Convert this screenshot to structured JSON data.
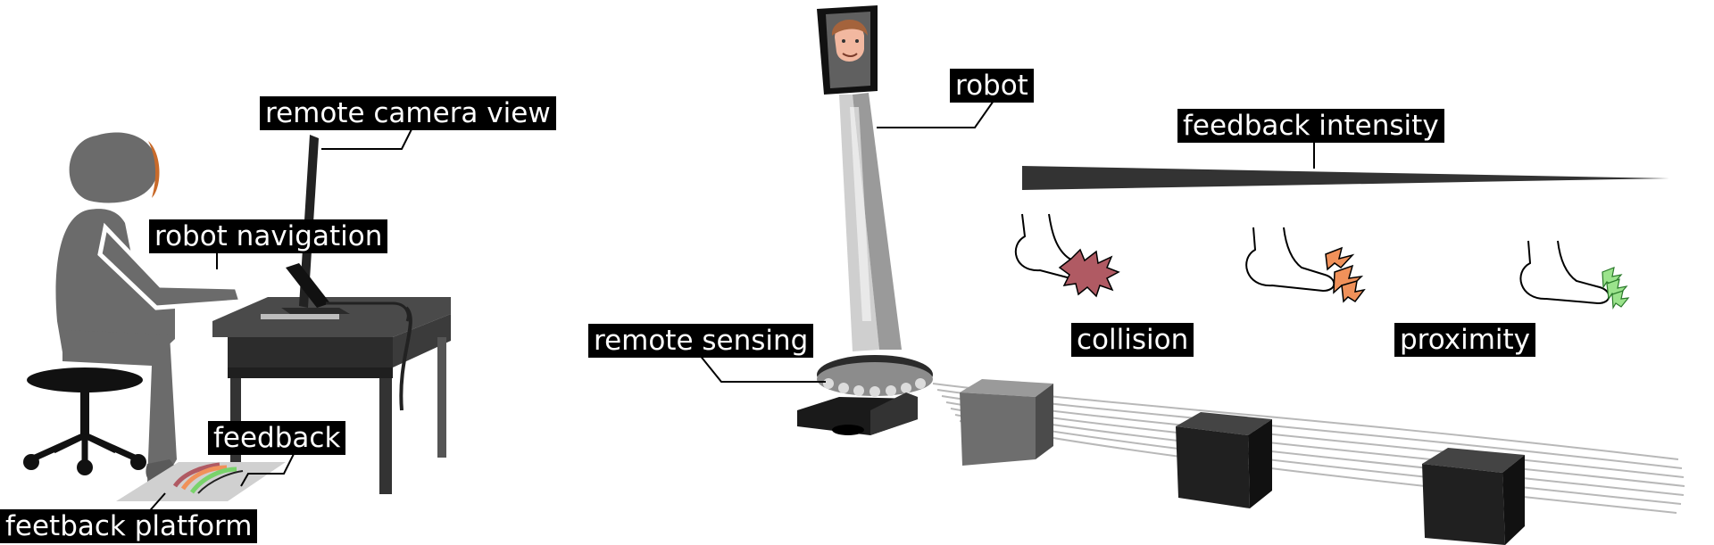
{
  "labels": {
    "remote_camera_view": "remote camera view",
    "robot_navigation": "robot navigation",
    "feedback": "feedback",
    "feetback_platform": "feetback platform",
    "robot": "robot",
    "remote_sensing": "remote sensing",
    "feedback_intensity": "feedback intensity",
    "collision": "collision",
    "proximity": "proximity"
  },
  "colors": {
    "label_bg": "#000000",
    "label_text": "#ffffff",
    "person": "#6b6b6b",
    "desk": "#3a3a3a",
    "collision_mark": "#b05a63",
    "warning_mark": "#f0915a",
    "proximity_mark": "#79d36b",
    "box_far": "#6e6e6e",
    "box_near": "#202020"
  },
  "icons": [
    "face-icon",
    "foot-icon",
    "collision-burst-icon",
    "warning-arrows-icon",
    "proximity-arrows-icon"
  ]
}
